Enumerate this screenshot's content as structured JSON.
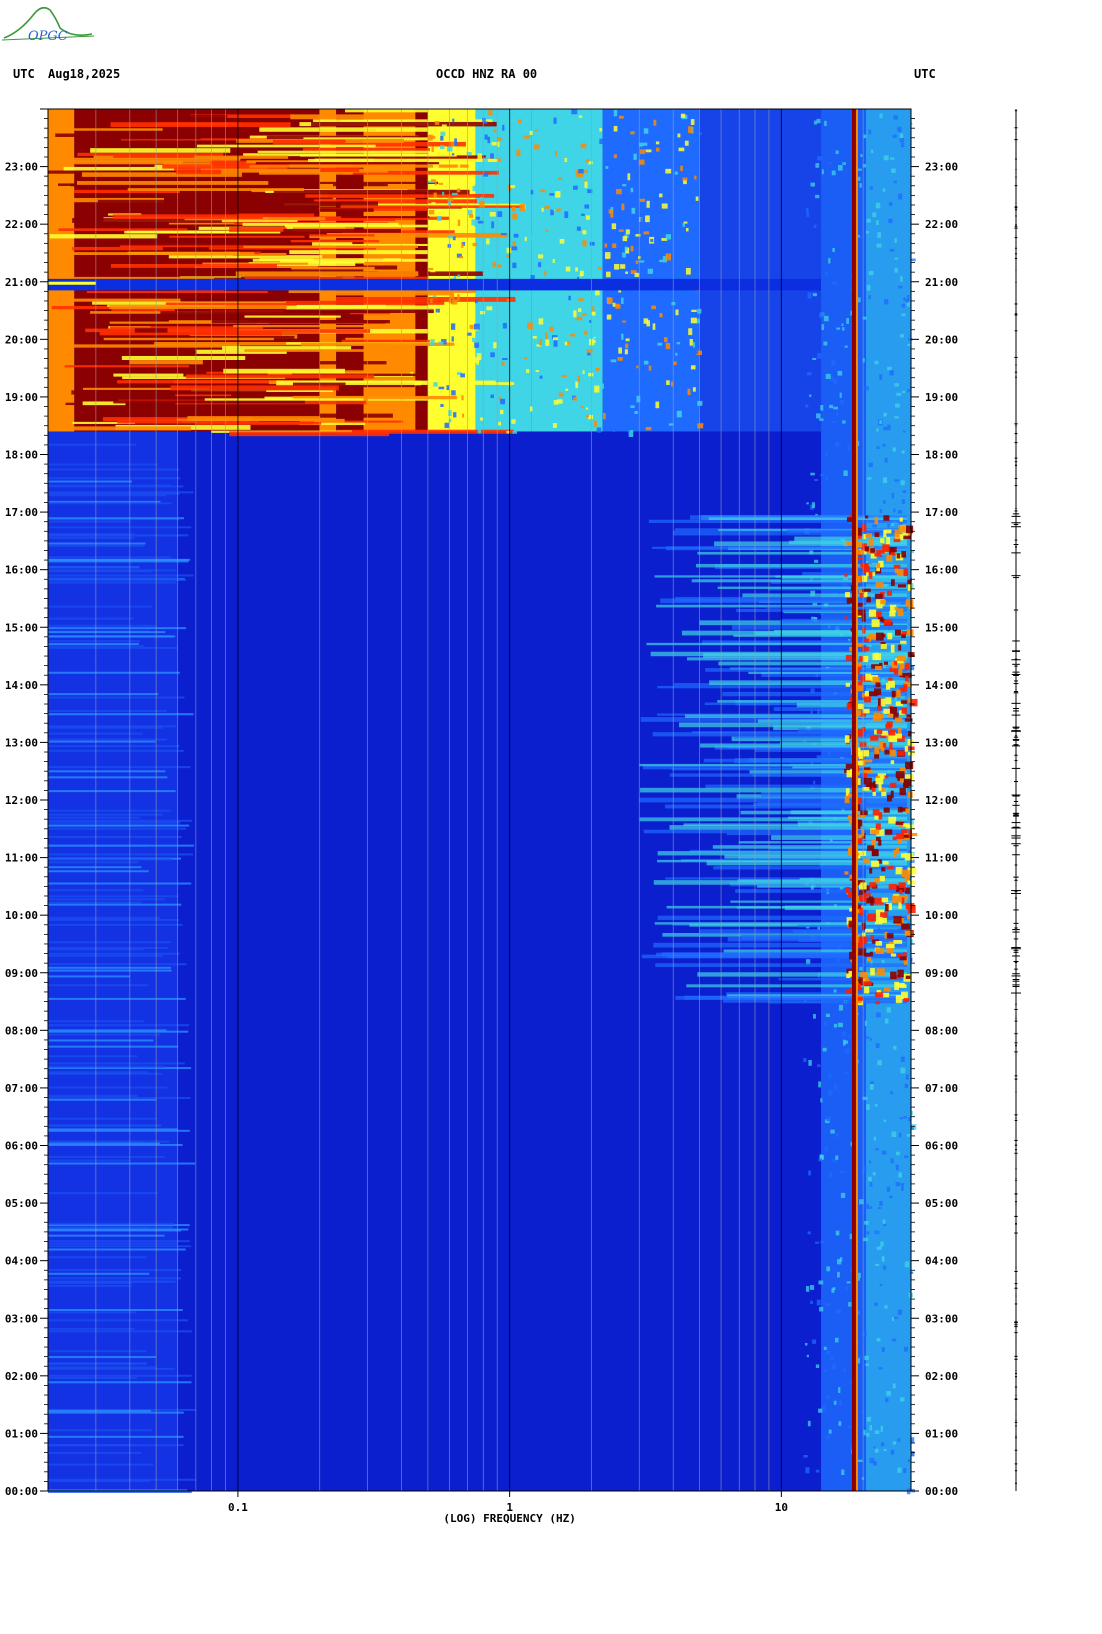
{
  "header": {
    "tz_left": "UTC",
    "date": "Aug18,2025",
    "station": "OCCD HNZ RA 00",
    "tz_right": "UTC",
    "logo_text": "OPGC"
  },
  "colors": {
    "low": "#0b1fcf",
    "mid_low": "#1f6bff",
    "mid": "#3fd4e6",
    "mid_high": "#ffff30",
    "high": "#ff8a00",
    "peak": "#8b0000"
  },
  "chart_data": {
    "type": "heatmap",
    "title": "OCCD HNZ RA 00",
    "xlabel": "(LOG) FREQUENCY (HZ)",
    "x_scale": "log",
    "xlim_hz": [
      0.02,
      30
    ],
    "x_ticks": [
      {
        "value": 0.1,
        "label": "0.1"
      },
      {
        "value": 1,
        "label": "1"
      },
      {
        "value": 10,
        "label": "10"
      }
    ],
    "ylabel": "UTC",
    "ylim_hours": [
      0,
      24
    ],
    "y_tick_labels": [
      "00:00",
      "01:00",
      "02:00",
      "03:00",
      "04:00",
      "05:00",
      "06:00",
      "07:00",
      "08:00",
      "09:00",
      "10:00",
      "11:00",
      "12:00",
      "13:00",
      "14:00",
      "15:00",
      "16:00",
      "17:00",
      "18:00",
      "19:00",
      "20:00",
      "21:00",
      "22:00",
      "23:00"
    ],
    "regions": [
      {
        "name": "strong broadband energy",
        "hours": [
          18.4,
          24
        ],
        "fmax_hz": 5,
        "level": "high"
      },
      {
        "name": "data gap",
        "hours": [
          20.85,
          21.05
        ],
        "level": "low"
      },
      {
        "name": "high-frequency bursts",
        "hours": [
          8.5,
          17
        ],
        "fmin_hz": 3,
        "level": "mid_high"
      },
      {
        "name": "persistent 18 Hz line",
        "hours": [
          0,
          24
        ],
        "freq_hz": 18.5,
        "level": "peak"
      }
    ],
    "grid": true
  }
}
